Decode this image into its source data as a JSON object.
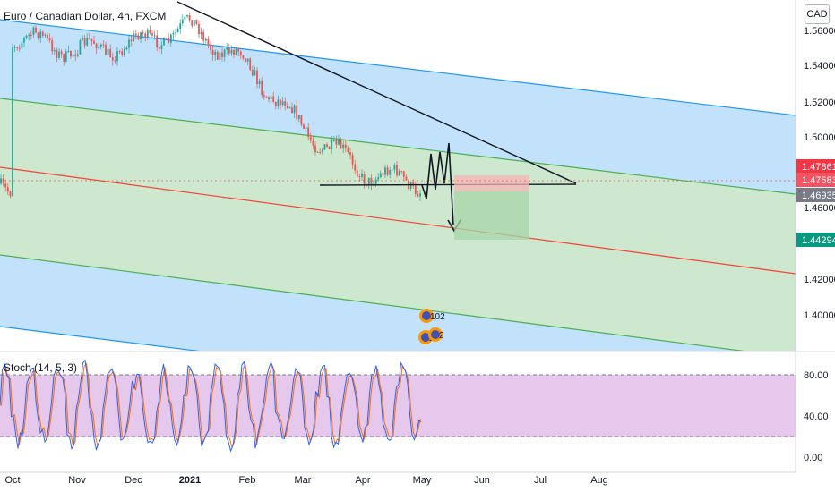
{
  "title": "Euro / Canadian Dollar, 4h, FXCM",
  "currency_button": "CAD",
  "colors": {
    "upper_channel": "#2196f3",
    "upper_fill": "#bbdefb",
    "middle_channel": "#4caf50",
    "middle_fill": "#c8e6c9",
    "centre_line": "#f44336",
    "candle_up": "#26a69a",
    "candle_down": "#ef5350",
    "stoch_k": "#2962ff",
    "stoch_d": "#ff6d00",
    "stoch_band": "#e1bee7"
  },
  "chart_data": [
    {
      "type": "candlestick",
      "title": "Euro / Canadian Dollar, 4h, FXCM",
      "x_ticks": [
        "Oct",
        "Nov",
        "Dec",
        "2021",
        "Feb",
        "Mar",
        "Apr",
        "May",
        "Jun",
        "Jul",
        "Aug"
      ],
      "y_ticks": [
        "1.56000",
        "1.54000",
        "1.52000",
        "1.50000",
        "1.46000",
        "1.42000",
        "1.40000"
      ],
      "ylim": [
        1.38,
        1.575
      ],
      "close_path": [
        {
          "x": "Oct",
          "y": 1.557
        },
        {
          "x": "Nov",
          "y": 1.548
        },
        {
          "x": "Dec",
          "y": 1.552
        },
        {
          "x": "2021",
          "y": 1.562
        },
        {
          "x": "Feb",
          "y": 1.54
        },
        {
          "x": "Mar",
          "y": 1.503
        },
        {
          "x": "Apr",
          "y": 1.478
        },
        {
          "x": "May",
          "y": 1.471
        }
      ],
      "price_labels": [
        {
          "text": "1.47861",
          "color": "#f23645"
        },
        {
          "text": "1.47583",
          "color": "#f7525f"
        },
        {
          "text": "1.46935",
          "color": "#787b86"
        },
        {
          "text": "1.44294",
          "color": "#089981"
        }
      ],
      "annotations": [
        "102",
        "20",
        "2"
      ],
      "drawings": [
        "descending trendline",
        "support line",
        "projected zig-zag path",
        "short position box"
      ]
    },
    {
      "type": "line",
      "title": "Stoch (14, 5, 3)",
      "y_ticks": [
        "80.00",
        "40.00",
        "0.00"
      ],
      "ylim": [
        0,
        100
      ],
      "bands": [
        20,
        80
      ],
      "series": [
        {
          "name": "%K"
        },
        {
          "name": "%D"
        }
      ]
    }
  ]
}
